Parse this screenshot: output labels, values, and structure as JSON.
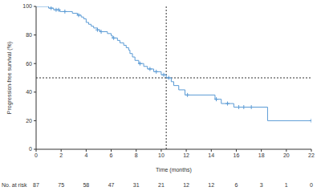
{
  "chart_data": {
    "type": "line",
    "line_style": "step",
    "marker": "plus",
    "color": "#5b9bd5",
    "xlabel": "Time (months)",
    "ylabel": "Progression-free survival (%)",
    "x": [
      0,
      1.0,
      1.4,
      1.9,
      2.9,
      3.3,
      3.6,
      3.8,
      4.0,
      4.2,
      4.4,
      4.6,
      4.9,
      5.1,
      5.7,
      6.0,
      6.1,
      6.5,
      6.7,
      7.0,
      7.2,
      7.4,
      7.5,
      7.7,
      7.9,
      8.2,
      8.6,
      8.9,
      9.4,
      10.0,
      10.4,
      10.8,
      11.0,
      11.4,
      11.9,
      14.3,
      14.8,
      15.8,
      18.5,
      22.0
    ],
    "values": [
      100,
      98.8,
      97.6,
      96.4,
      95.2,
      93.9,
      92.6,
      91.3,
      88.8,
      87.5,
      86.2,
      84.9,
      83.6,
      82.3,
      81.0,
      79.6,
      77.9,
      76.2,
      74.5,
      72.8,
      71.1,
      69.4,
      67.0,
      64.6,
      62.2,
      60.0,
      58.0,
      56.2,
      54.3,
      52.1,
      50.0,
      47.3,
      44.6,
      41.6,
      38.0,
      35.0,
      32.0,
      29.5,
      20.0,
      20.0
    ],
    "censored_x": [
      1.2,
      1.6,
      1.8,
      2.3,
      3.4,
      4.9,
      5.2,
      6.2,
      8.3,
      9.1,
      9.6,
      10.2,
      10.6,
      12.1,
      14.4,
      15.3,
      16.2,
      16.6,
      17.2,
      22.0
    ],
    "xlim": [
      0,
      22
    ],
    "xticks": [
      0,
      2,
      4,
      6,
      8,
      10,
      12,
      14,
      16,
      18,
      20,
      22
    ],
    "ylim": [
      0,
      100
    ],
    "yticks": [
      0,
      20,
      40,
      60,
      80,
      100
    ],
    "grid": false,
    "reference_lines": {
      "x": 10.4,
      "y": 50
    },
    "risk_table": {
      "label": "No. at risk",
      "x": [
        0,
        2,
        4,
        6,
        8,
        10,
        12,
        14,
        16,
        18,
        20,
        22
      ],
      "values": [
        87,
        75,
        58,
        47,
        31,
        21,
        12,
        12,
        6,
        3,
        1,
        0
      ]
    }
  }
}
